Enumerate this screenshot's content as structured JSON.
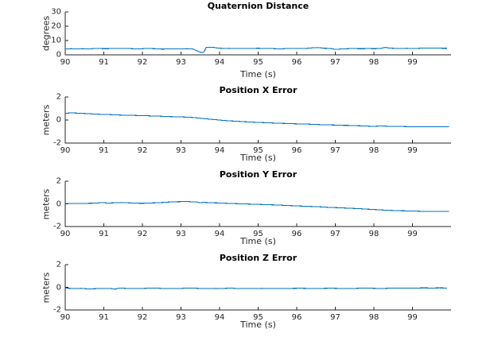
{
  "figure": {
    "background": "#ffffff",
    "line_color": "#0072BD",
    "axis_color": "#262626",
    "tick_label_color": "#262626",
    "title_color": "#000000"
  },
  "chart_data": [
    {
      "type": "line",
      "title": "Quaternion Distance",
      "xlabel": "Time (s)",
      "ylabel": "degrees",
      "xlim": [
        90,
        100
      ],
      "ylim": [
        0,
        30
      ],
      "xticks": [
        90,
        91,
        92,
        93,
        94,
        95,
        96,
        97,
        98,
        99
      ],
      "yticks": [
        0,
        10,
        20,
        30
      ],
      "grid": false,
      "legend": null,
      "x": [
        90.0,
        90.15,
        90.3,
        90.45,
        90.6,
        90.7,
        90.8,
        90.9,
        91.0,
        91.15,
        91.3,
        91.45,
        91.6,
        91.75,
        91.9,
        92.0,
        92.1,
        92.25,
        92.4,
        92.5,
        92.65,
        92.8,
        93.0,
        93.15,
        93.3,
        93.4,
        93.5,
        93.55,
        93.6,
        93.65,
        93.75,
        93.85,
        93.95,
        94.1,
        94.25,
        94.4,
        94.55,
        94.7,
        94.85,
        95.0,
        95.1,
        95.25,
        95.4,
        95.5,
        95.65,
        95.8,
        95.95,
        96.1,
        96.25,
        96.4,
        96.55,
        96.7,
        96.85,
        97.0,
        97.1,
        97.25,
        97.4,
        97.55,
        97.7,
        97.85,
        98.0,
        98.15,
        98.3,
        98.4,
        98.55,
        98.7,
        98.85,
        99.0,
        99.15,
        99.3,
        99.45,
        99.6,
        99.75,
        99.9
      ],
      "y": [
        4.2,
        4.3,
        4.25,
        4.3,
        4.2,
        4.3,
        4.5,
        4.4,
        4.3,
        4.35,
        4.55,
        4.4,
        4.45,
        4.3,
        4.25,
        4.3,
        4.45,
        4.35,
        4.2,
        4.0,
        4.1,
        4.25,
        4.25,
        4.3,
        4.2,
        3.0,
        1.9,
        1.6,
        2.1,
        5.1,
        5.4,
        5.2,
        4.7,
        4.5,
        4.55,
        4.45,
        4.4,
        4.5,
        4.45,
        4.6,
        4.5,
        4.4,
        4.35,
        4.2,
        4.3,
        4.5,
        4.45,
        4.4,
        4.5,
        4.9,
        5.1,
        4.6,
        4.5,
        3.9,
        4.0,
        4.2,
        4.4,
        4.35,
        4.3,
        4.4,
        4.3,
        4.4,
        5.2,
        4.7,
        4.5,
        4.5,
        4.55,
        4.5,
        4.55,
        4.7,
        4.65,
        4.6,
        4.6,
        4.6
      ]
    },
    {
      "type": "line",
      "title": "Position X Error",
      "xlabel": "Time (s)",
      "ylabel": "meters",
      "xlim": [
        90,
        100
      ],
      "ylim": [
        -2,
        2
      ],
      "xticks": [
        90,
        91,
        92,
        93,
        94,
        95,
        96,
        97,
        98,
        99
      ],
      "yticks": [
        -2,
        0,
        2
      ],
      "grid": false,
      "legend": null,
      "x": [
        90.0,
        90.15,
        90.3,
        90.45,
        90.6,
        90.75,
        90.9,
        91.05,
        91.2,
        91.35,
        91.5,
        91.65,
        91.8,
        91.95,
        92.1,
        92.25,
        92.4,
        92.55,
        92.7,
        92.85,
        93.0,
        93.15,
        93.3,
        93.45,
        93.6,
        93.75,
        93.9,
        94.05,
        94.2,
        94.35,
        94.5,
        94.65,
        94.8,
        94.95,
        95.1,
        95.25,
        95.4,
        95.55,
        95.7,
        95.85,
        96.0,
        96.15,
        96.3,
        96.45,
        96.6,
        96.75,
        96.9,
        97.05,
        97.2,
        97.35,
        97.5,
        97.65,
        97.8,
        97.95,
        98.1,
        98.25,
        98.4,
        98.55,
        98.7,
        98.85,
        99.0,
        99.2,
        99.4,
        99.6,
        99.8,
        99.95
      ],
      "y": [
        0.58,
        0.62,
        0.6,
        0.58,
        0.55,
        0.52,
        0.5,
        0.48,
        0.46,
        0.44,
        0.42,
        0.41,
        0.4,
        0.38,
        0.37,
        0.35,
        0.34,
        0.32,
        0.3,
        0.28,
        0.27,
        0.25,
        0.22,
        0.18,
        0.12,
        0.07,
        0.03,
        -0.02,
        -0.06,
        -0.09,
        -0.12,
        -0.15,
        -0.17,
        -0.2,
        -0.22,
        -0.24,
        -0.26,
        -0.28,
        -0.3,
        -0.32,
        -0.33,
        -0.35,
        -0.36,
        -0.38,
        -0.4,
        -0.41,
        -0.43,
        -0.44,
        -0.46,
        -0.47,
        -0.49,
        -0.5,
        -0.52,
        -0.55,
        -0.53,
        -0.52,
        -0.55,
        -0.56,
        -0.56,
        -0.57,
        -0.57,
        -0.58,
        -0.58,
        -0.58,
        -0.58,
        -0.58
      ]
    },
    {
      "type": "line",
      "title": "Position Y Error",
      "xlabel": "Time (s)",
      "ylabel": "meters",
      "xlim": [
        90,
        100
      ],
      "ylim": [
        -2,
        2
      ],
      "xticks": [
        90,
        91,
        92,
        93,
        94,
        95,
        96,
        97,
        98,
        99
      ],
      "yticks": [
        -2,
        0,
        2
      ],
      "grid": false,
      "legend": null,
      "x": [
        90.0,
        90.2,
        90.4,
        90.6,
        90.8,
        90.95,
        91.1,
        91.3,
        91.45,
        91.6,
        91.8,
        92.0,
        92.2,
        92.4,
        92.6,
        92.8,
        93.0,
        93.2,
        93.4,
        93.5,
        93.6,
        93.8,
        94.0,
        94.2,
        94.4,
        94.6,
        94.8,
        95.0,
        95.2,
        95.4,
        95.6,
        95.8,
        96.0,
        96.2,
        96.4,
        96.6,
        96.8,
        97.0,
        97.2,
        97.4,
        97.6,
        97.8,
        98.0,
        98.2,
        98.4,
        98.6,
        98.8,
        99.0,
        99.2,
        99.4,
        99.6,
        99.8,
        99.95
      ],
      "y": [
        0.05,
        0.05,
        0.04,
        0.05,
        0.06,
        0.12,
        0.07,
        0.1,
        0.12,
        0.1,
        0.06,
        0.05,
        0.08,
        0.1,
        0.14,
        0.18,
        0.2,
        0.2,
        0.17,
        0.1,
        0.13,
        0.1,
        0.08,
        0.05,
        0.02,
        0.0,
        -0.02,
        -0.04,
        -0.07,
        -0.09,
        -0.12,
        -0.15,
        -0.18,
        -0.2,
        -0.23,
        -0.26,
        -0.3,
        -0.33,
        -0.36,
        -0.39,
        -0.42,
        -0.46,
        -0.5,
        -0.54,
        -0.57,
        -0.6,
        -0.62,
        -0.63,
        -0.65,
        -0.65,
        -0.66,
        -0.66,
        -0.66
      ]
    },
    {
      "type": "line",
      "title": "Position Z Error",
      "xlabel": "Time (s)",
      "ylabel": "meters",
      "xlim": [
        90,
        100
      ],
      "ylim": [
        -2,
        2
      ],
      "xticks": [
        90,
        91,
        92,
        93,
        94,
        95,
        96,
        97,
        98,
        99
      ],
      "yticks": [
        -2,
        0,
        2
      ],
      "grid": false,
      "legend": null,
      "x": [
        90.0,
        90.2,
        90.4,
        90.6,
        90.8,
        91.0,
        91.2,
        91.3,
        91.4,
        91.6,
        91.8,
        92.0,
        92.2,
        92.35,
        92.5,
        92.7,
        92.9,
        93.1,
        93.3,
        93.5,
        93.7,
        93.9,
        94.1,
        94.3,
        94.5,
        94.7,
        94.9,
        95.1,
        95.3,
        95.5,
        95.7,
        95.9,
        96.1,
        96.3,
        96.5,
        96.7,
        96.9,
        97.1,
        97.3,
        97.5,
        97.7,
        97.9,
        98.1,
        98.3,
        98.5,
        98.7,
        98.9,
        99.1,
        99.3,
        99.5,
        99.7,
        99.9
      ],
      "y": [
        -0.08,
        -0.1,
        -0.09,
        -0.14,
        -0.12,
        -0.1,
        -0.12,
        -0.16,
        -0.06,
        -0.1,
        -0.11,
        -0.1,
        -0.07,
        -0.06,
        -0.1,
        -0.11,
        -0.12,
        -0.08,
        -0.07,
        -0.1,
        -0.11,
        -0.09,
        -0.1,
        -0.07,
        -0.11,
        -0.12,
        -0.1,
        -0.09,
        -0.11,
        -0.1,
        -0.11,
        -0.09,
        -0.08,
        -0.1,
        -0.11,
        -0.09,
        -0.08,
        -0.1,
        -0.09,
        -0.1,
        -0.07,
        -0.08,
        -0.1,
        -0.09,
        -0.06,
        -0.07,
        -0.08,
        -0.06,
        -0.05,
        -0.06,
        -0.05,
        -0.06
      ]
    }
  ]
}
